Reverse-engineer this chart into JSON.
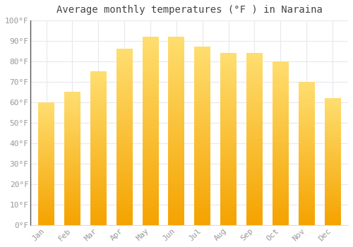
{
  "title": "Average monthly temperatures (°F ) in Naraina",
  "months": [
    "Jan",
    "Feb",
    "Mar",
    "Apr",
    "May",
    "Jun",
    "Jul",
    "Aug",
    "Sep",
    "Oct",
    "Nov",
    "Dec"
  ],
  "values": [
    60,
    65,
    75,
    86,
    92,
    92,
    87,
    84,
    84,
    80,
    70,
    62
  ],
  "bar_color_bottom": "#F5A300",
  "bar_color_top": "#FFD966",
  "ylim": [
    0,
    100
  ],
  "yticks": [
    0,
    10,
    20,
    30,
    40,
    50,
    60,
    70,
    80,
    90,
    100
  ],
  "ytick_labels": [
    "0°F",
    "10°F",
    "20°F",
    "30°F",
    "40°F",
    "50°F",
    "60°F",
    "70°F",
    "80°F",
    "90°F",
    "100°F"
  ],
  "background_color": "#ffffff",
  "grid_color": "#e8e8ee",
  "title_fontsize": 10,
  "tick_fontsize": 8,
  "bar_width": 0.62,
  "fig_width": 5.0,
  "fig_height": 3.5,
  "dpi": 100
}
